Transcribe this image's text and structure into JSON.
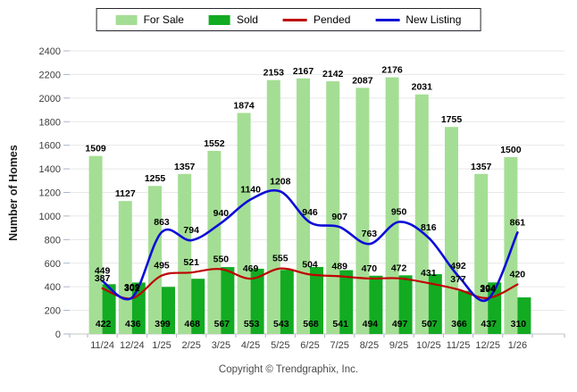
{
  "chart_data": {
    "type": "bar+line",
    "title": "",
    "ylabel": "Number of Homes",
    "xlabel": "",
    "ylim": [
      0,
      2400
    ],
    "ytick_step": 200,
    "grid": true,
    "legend_position": "top-center",
    "value_labels": true,
    "categories": [
      "11/24",
      "12/24",
      "1/25",
      "2/25",
      "3/25",
      "4/25",
      "5/25",
      "6/25",
      "7/25",
      "8/25",
      "9/25",
      "10/25",
      "11/25",
      "12/25",
      "1/26"
    ],
    "series": [
      {
        "name": "For Sale",
        "type": "bar",
        "color": "#A4DE94",
        "values": [
          1509,
          1127,
          1255,
          1357,
          1552,
          1874,
          2153,
          2167,
          2142,
          2087,
          2176,
          2031,
          1755,
          1357,
          1500
        ]
      },
      {
        "name": "Sold",
        "type": "bar",
        "color": "#12AB22",
        "values": [
          422,
          436,
          399,
          468,
          567,
          553,
          543,
          568,
          541,
          494,
          497,
          507,
          366,
          437,
          310
        ]
      },
      {
        "name": "Pended",
        "type": "line",
        "color": "#BE0000",
        "values": [
          387,
          302,
          495,
          521,
          550,
          469,
          555,
          504,
          489,
          470,
          472,
          431,
          377,
          304,
          420
        ]
      },
      {
        "name": "New Listing",
        "type": "line",
        "color": "#0D0DD6",
        "values": [
          449,
          309,
          863,
          794,
          940,
          1140,
          1208,
          946,
          907,
          763,
          950,
          816,
          492,
          294,
          861
        ]
      }
    ]
  },
  "axis_style": {
    "grid_color": "#E7E7E7",
    "axis_color": "#C6C6C6",
    "tick_color": "#A9B6C6",
    "tick_label_color": "#3C3C3C",
    "value_label_color": "#000000"
  },
  "footer": {
    "copyright": "Copyright © Trendgraphix, Inc."
  }
}
